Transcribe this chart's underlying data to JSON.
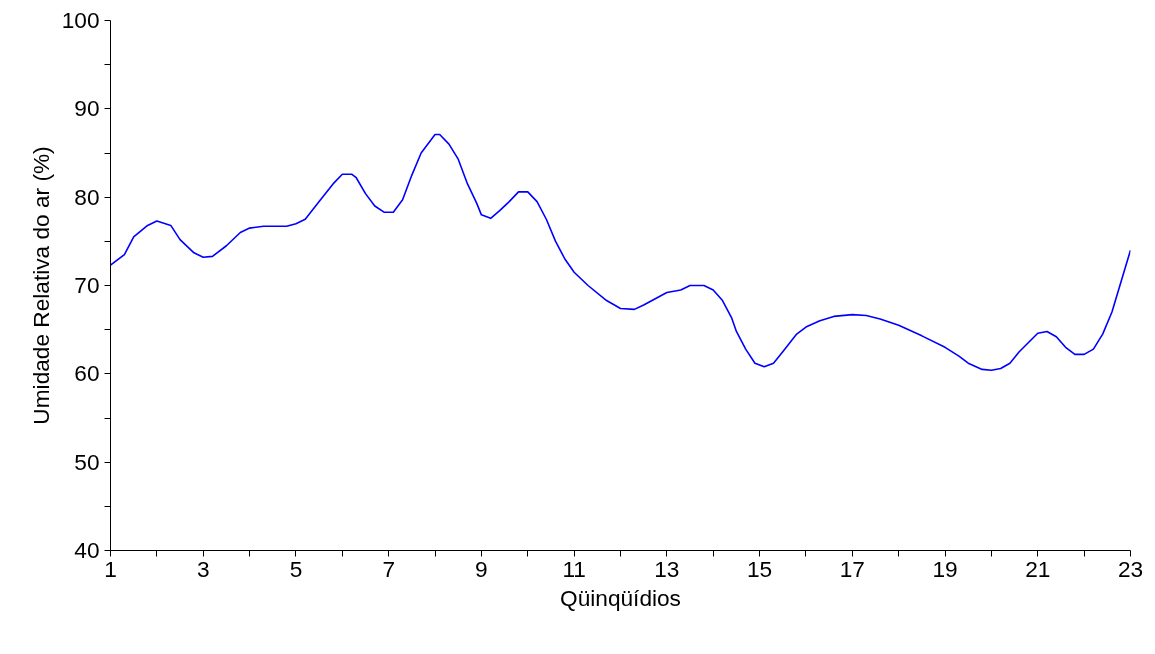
{
  "chart_data": {
    "type": "line",
    "xlabel": "Qüinqüídios",
    "ylabel": "Umidade Relativa do ar (%)",
    "xlim": [
      1,
      23
    ],
    "ylim": [
      40,
      100
    ],
    "xticks": [
      1,
      {
        "value": 2,
        "label": null
      },
      3,
      {
        "value": 4,
        "label": null
      },
      5,
      {
        "value": 6,
        "label": null
      },
      7,
      {
        "value": 8,
        "label": null
      },
      9,
      {
        "value": 10,
        "label": null
      },
      11,
      {
        "value": 12,
        "label": null
      },
      13,
      {
        "value": 14,
        "label": null
      },
      15,
      {
        "value": 16,
        "label": null
      },
      17,
      {
        "value": 18,
        "label": null
      },
      19,
      {
        "value": 20,
        "label": null
      },
      21,
      {
        "value": 22,
        "label": null
      },
      23
    ],
    "yticks": [
      40,
      {
        "value": 45,
        "label": null
      },
      50,
      {
        "value": 55,
        "label": null
      },
      60,
      {
        "value": 65,
        "label": null
      },
      70,
      {
        "value": 75,
        "label": null
      },
      80,
      {
        "value": 85,
        "label": null
      },
      90,
      {
        "value": 95,
        "label": null
      },
      100
    ],
    "grid": false,
    "marker": "none",
    "line_style": "solid",
    "series": [
      {
        "color": "#0000ff",
        "x": [
          1,
          1.3,
          1.5,
          1.8,
          2,
          2.3,
          2.5,
          2.8,
          3,
          3.2,
          3.5,
          3.8,
          4,
          4.3,
          4.8,
          5,
          5.2,
          5.5,
          5.8,
          6,
          6.2,
          6.3,
          6.5,
          6.7,
          6.9,
          7.1,
          7.3,
          7.5,
          7.7,
          8,
          8.1,
          8.3,
          8.5,
          8.7,
          8.9,
          9,
          9.2,
          9.4,
          9.6,
          9.8,
          10,
          10.2,
          10.4,
          10.6,
          10.8,
          11,
          11.3,
          11.7,
          12,
          12.3,
          12.5,
          13,
          13.3,
          13.5,
          13.8,
          14,
          14.2,
          14.4,
          14.5,
          14.7,
          14.9,
          15.1,
          15.3,
          15.5,
          15.8,
          16,
          16.3,
          16.6,
          17,
          17.3,
          17.6,
          18,
          18.5,
          19,
          19.3,
          19.5,
          19.8,
          20,
          20.2,
          20.4,
          20.6,
          21,
          21.2,
          21.4,
          21.6,
          21.8,
          22,
          22.2,
          22.4,
          22.6,
          23
        ],
        "values": [
          72.3,
          73.5,
          75.5,
          76.8,
          77.3,
          76.8,
          75.2,
          73.7,
          73.2,
          73.3,
          74.5,
          76,
          76.5,
          76.7,
          76.7,
          77,
          77.5,
          79.5,
          81.5,
          82.6,
          82.6,
          82.2,
          80.4,
          79,
          78.3,
          78.3,
          79.7,
          82.5,
          85,
          87.1,
          87.1,
          86,
          84.3,
          81.5,
          79.3,
          78,
          77.6,
          78.5,
          79.5,
          80.6,
          80.6,
          79.5,
          77.5,
          75,
          73,
          71.5,
          70,
          68.3,
          67.4,
          67.3,
          67.8,
          69.2,
          69.5,
          70,
          70,
          69.5,
          68.3,
          66.3,
          64.8,
          62.8,
          61.2,
          60.8,
          61.2,
          62.5,
          64.5,
          65.3,
          66,
          66.5,
          66.7,
          66.6,
          66.2,
          65.5,
          64.3,
          63,
          62,
          61.2,
          60.5,
          60.4,
          60.6,
          61.2,
          62.5,
          64.6,
          64.8,
          64.2,
          63,
          62.2,
          62.2,
          62.8,
          64.5,
          67,
          74
        ]
      }
    ]
  }
}
